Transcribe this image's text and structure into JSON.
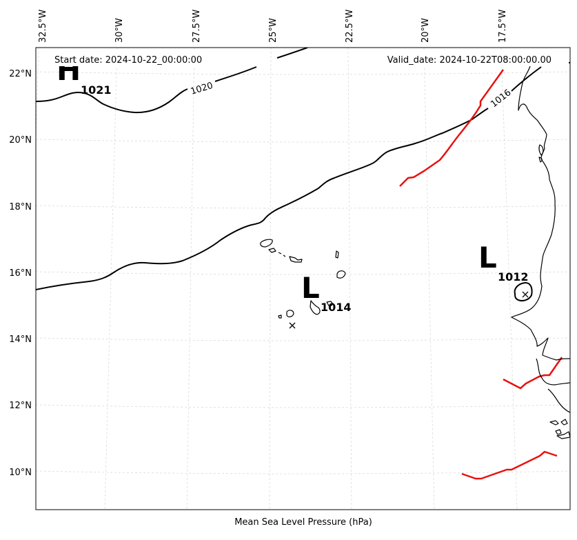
{
  "map": {
    "start_date": "Start date: 2024-10-22_00:00:00",
    "valid_date": "Valid_date: 2024-10-22T08:00:00.00",
    "bottom_title": "Mean Sea Level Pressure (hPa)",
    "lon_labels": [
      "32.5°W",
      "30°W",
      "27.5°W",
      "25°W",
      "22.5°W",
      "20°W",
      "17.5°W"
    ],
    "lat_labels": [
      "22°N",
      "20°N",
      "18°N",
      "16°N",
      "14°N",
      "12°N",
      "10°N"
    ],
    "isobars": [
      {
        "value": 1020,
        "label": "1020"
      },
      {
        "value": 1016,
        "label": "1016"
      }
    ],
    "pressure_centers": [
      {
        "type": "H",
        "letter": "H",
        "value": "1021"
      },
      {
        "type": "L",
        "letter": "L",
        "value": "1014"
      },
      {
        "type": "L",
        "letter": "L",
        "value": "1012"
      }
    ],
    "colors": {
      "isobar": "#000000",
      "front": "#e8110f",
      "grid": "#cccccc",
      "coast": "#000000"
    }
  }
}
